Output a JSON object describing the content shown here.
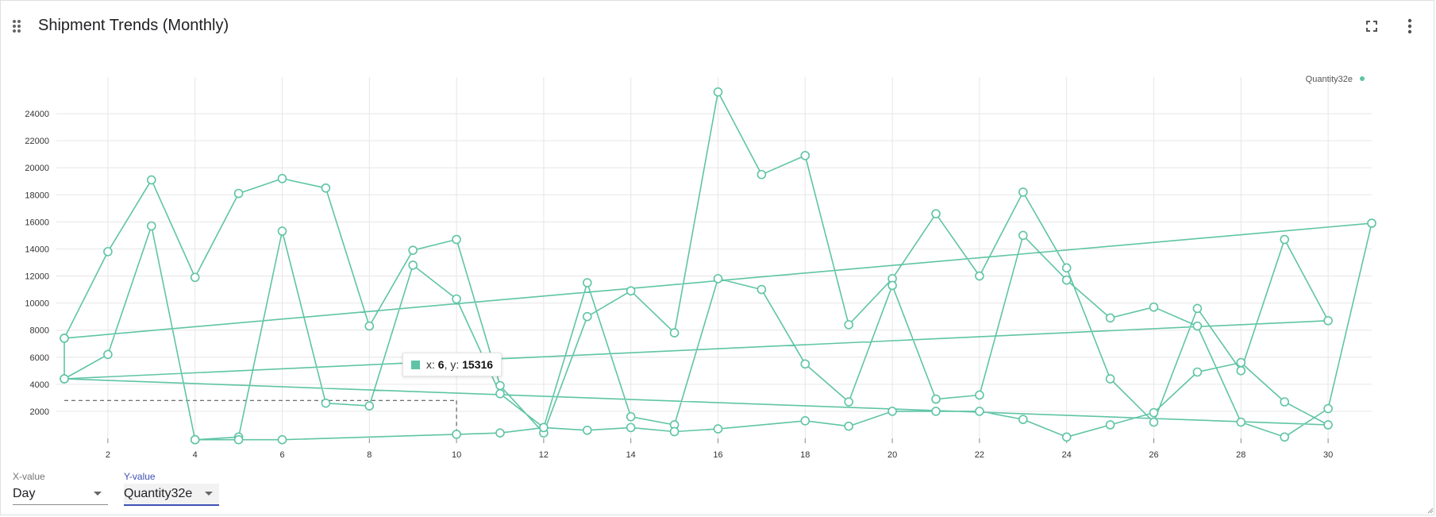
{
  "card": {
    "title": "Shipment Trends (Monthly)",
    "icons": {
      "drag": "drag-handle-icon",
      "fullscreen": "fullscreen-icon",
      "menu": "more-vert-icon"
    }
  },
  "colors": {
    "series": "#5fc4a5",
    "grid": "#e6e6e6",
    "accent": "#3f51b5"
  },
  "tooltip": {
    "x_label": "x: ",
    "x": "6",
    "y_label": ", y: ",
    "y": "15316"
  },
  "controls": {
    "x_select": {
      "label": "X-value",
      "value": "Day"
    },
    "y_select": {
      "label": "Y-value",
      "value": "Quantity32e"
    }
  },
  "chart_data": {
    "type": "line",
    "title": "",
    "xlabel": "",
    "ylabel": "",
    "xlim": [
      1,
      31
    ],
    "ylim": [
      0,
      26000
    ],
    "x_ticks": [
      2,
      4,
      6,
      8,
      10,
      12,
      14,
      16,
      18,
      20,
      22,
      24,
      26,
      28,
      30
    ],
    "y_ticks": [
      2000,
      4000,
      6000,
      8000,
      10000,
      12000,
      14000,
      16000,
      18000,
      20000,
      22000,
      24000
    ],
    "grid": true,
    "legend_position": "top-right",
    "series": [
      {
        "name": "Quantity32e",
        "points": [
          [
            1,
            7400
          ],
          [
            2,
            13800
          ],
          [
            3,
            19100
          ],
          [
            4,
            11900
          ],
          [
            5,
            18100
          ],
          [
            6,
            19200
          ],
          [
            7,
            18500
          ],
          [
            8,
            8300
          ],
          [
            9,
            13900
          ],
          [
            10,
            14700
          ],
          [
            11,
            3900
          ],
          [
            12,
            400
          ],
          [
            13,
            9000
          ],
          [
            14,
            10900
          ],
          [
            15,
            7800
          ],
          [
            16,
            25600
          ],
          [
            17,
            19500
          ],
          [
            18,
            20900
          ],
          [
            19,
            8400
          ],
          [
            20,
            11800
          ],
          [
            21,
            16600
          ],
          [
            22,
            12000
          ],
          [
            23,
            18200
          ],
          [
            24,
            12600
          ],
          [
            25,
            4400
          ],
          [
            26,
            1200
          ],
          [
            27,
            9600
          ],
          [
            28,
            5000
          ],
          [
            29,
            14700
          ],
          [
            30,
            8700
          ],
          [
            1,
            4400
          ],
          [
            2,
            6200
          ],
          [
            3,
            15700
          ],
          [
            4,
            -100
          ],
          [
            5,
            100
          ],
          [
            6,
            15316
          ],
          [
            7,
            2600
          ],
          [
            8,
            2400
          ],
          [
            9,
            12800
          ],
          [
            10,
            10300
          ],
          [
            11,
            3300
          ],
          [
            12,
            800
          ],
          [
            13,
            11500
          ],
          [
            14,
            1600
          ],
          [
            15,
            1000
          ],
          [
            16,
            11800
          ],
          [
            17,
            11000
          ],
          [
            18,
            5500
          ],
          [
            19,
            2700
          ],
          [
            20,
            11300
          ],
          [
            21,
            2900
          ],
          [
            22,
            3200
          ],
          [
            23,
            15000
          ],
          [
            24,
            11700
          ],
          [
            25,
            8900
          ],
          [
            26,
            9700
          ],
          [
            27,
            8300
          ],
          [
            28,
            1200
          ],
          [
            29,
            100
          ],
          [
            30,
            2200
          ],
          [
            31,
            15900
          ],
          [
            1,
            7400
          ],
          [
            1,
            4400
          ],
          [
            30,
            1000
          ],
          [
            29,
            2700
          ],
          [
            28,
            5600
          ],
          [
            27,
            4900
          ],
          [
            26,
            1900
          ],
          [
            25,
            1000
          ],
          [
            24,
            100
          ],
          [
            23,
            1400
          ],
          [
            22,
            2000
          ],
          [
            21,
            2000
          ],
          [
            20,
            2000
          ],
          [
            19,
            900
          ],
          [
            18,
            1300
          ],
          [
            16,
            700
          ],
          [
            15,
            500
          ],
          [
            14,
            800
          ],
          [
            13,
            600
          ],
          [
            12,
            800
          ],
          [
            11,
            400
          ],
          [
            10,
            300
          ],
          [
            6,
            -100
          ],
          [
            5,
            -100
          ],
          [
            4,
            -100
          ]
        ]
      }
    ]
  }
}
